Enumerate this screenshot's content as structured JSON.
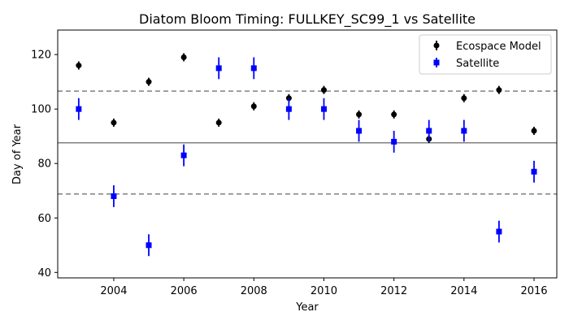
{
  "chart_data": {
    "type": "scatter",
    "title": "Diatom Bloom Timing: FULLKEY_SC99_1 vs Satellite",
    "xlabel": "Year",
    "ylabel": "Day of Year",
    "xlim": [
      2002.4,
      2016.65
    ],
    "ylim": [
      38,
      129
    ],
    "x_ticks": [
      2004,
      2006,
      2008,
      2010,
      2012,
      2014,
      2016
    ],
    "y_ticks": [
      40,
      60,
      80,
      100,
      120
    ],
    "grid": false,
    "legend_position": "top-right",
    "series": [
      {
        "name": "Ecospace Model",
        "marker": "circle",
        "color": "#000000",
        "x": [
          2003,
          2004,
          2005,
          2006,
          2007,
          2008,
          2009,
          2010,
          2011,
          2012,
          2013,
          2014,
          2015,
          2016
        ],
        "y": [
          116,
          95,
          110,
          119,
          95,
          101,
          104,
          107,
          98,
          98,
          89,
          104,
          107,
          92
        ],
        "yerr": [
          1.5,
          1.5,
          1.5,
          1.5,
          1.5,
          1.5,
          1.5,
          1.5,
          1.5,
          1.5,
          1.5,
          1.5,
          1.5,
          1.5
        ]
      },
      {
        "name": "Satellite",
        "marker": "square",
        "color": "#0000ff",
        "x": [
          2003,
          2004,
          2005,
          2006,
          2007,
          2008,
          2009,
          2010,
          2011,
          2012,
          2013,
          2014,
          2015,
          2016
        ],
        "y": [
          100,
          68,
          50,
          83,
          115,
          115,
          100,
          100,
          92,
          88,
          92,
          92,
          55,
          77
        ],
        "yerr": [
          4,
          4,
          4,
          4,
          4,
          4,
          4,
          4,
          4,
          4,
          4,
          4,
          4,
          4
        ]
      }
    ],
    "reference_lines": [
      {
        "y": 87.6,
        "style": "solid",
        "color": "#808080"
      },
      {
        "y": 106.6,
        "style": "dashed",
        "color": "#808080"
      },
      {
        "y": 68.8,
        "style": "dashed",
        "color": "#808080"
      }
    ]
  }
}
